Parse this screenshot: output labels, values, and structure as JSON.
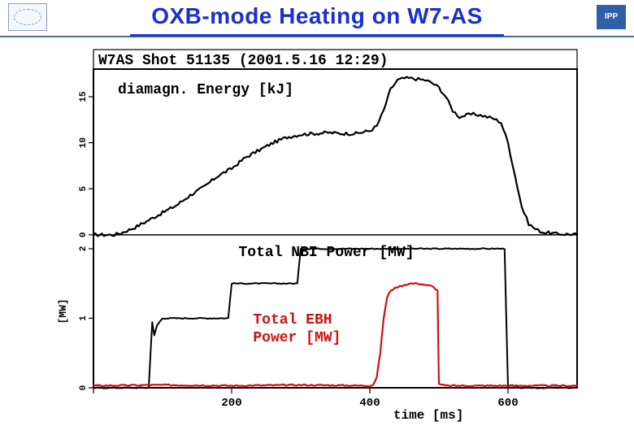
{
  "title": {
    "text": "OXB-mode Heating on W7-AS",
    "color": "#1a2fd0",
    "fontsize": 28
  },
  "logos": {
    "left_name": "stellarator-logo",
    "right_name": "ipp-logo"
  },
  "figure": {
    "shot_label": "W7AS Shot 51135 (2001.5.16 12:29)",
    "shot_label_fontsize": 18,
    "frame_color": "#000000",
    "frame_linewidth": 2,
    "background_color": "#ffffff",
    "x_axis": {
      "label": "time [ms]",
      "label_fontsize": 16,
      "min": 0,
      "max": 700,
      "ticks": [
        0,
        200,
        400,
        600
      ],
      "tick_labels": [
        "",
        "200",
        "400",
        "600"
      ],
      "tick_fontsize": 14,
      "color": "#000000"
    },
    "panels": [
      {
        "name": "diamagn-energy",
        "ylabel_inside": "diamagn. Energy [kJ]",
        "ylabel_color": "#000000",
        "ylabel_fontsize": 18,
        "ymin": 0,
        "ymax": 18,
        "yticks": [
          0,
          5,
          10,
          15
        ],
        "ytick_labels": [
          "0",
          "5",
          "10",
          "15"
        ],
        "series": [
          {
            "name": "energy-trace",
            "color": "#000000",
            "linewidth": 2.2,
            "noise": 0.35,
            "data": [
              [
                0,
                0
              ],
              [
                30,
                0
              ],
              [
                40,
                0.2
              ],
              [
                60,
                0.8
              ],
              [
                80,
                1.6
              ],
              [
                100,
                2.4
              ],
              [
                120,
                3.2
              ],
              [
                140,
                4.3
              ],
              [
                160,
                5.2
              ],
              [
                180,
                6.4
              ],
              [
                200,
                7.2
              ],
              [
                220,
                8.4
              ],
              [
                240,
                9.2
              ],
              [
                260,
                10.0
              ],
              [
                280,
                10.6
              ],
              [
                300,
                10.9
              ],
              [
                320,
                11.0
              ],
              [
                340,
                11.1
              ],
              [
                360,
                11.0
              ],
              [
                380,
                11.0
              ],
              [
                400,
                11.3
              ],
              [
                410,
                11.8
              ],
              [
                420,
                13.5
              ],
              [
                430,
                15.8
              ],
              [
                440,
                16.8
              ],
              [
                450,
                17.0
              ],
              [
                460,
                17.0
              ],
              [
                470,
                16.9
              ],
              [
                480,
                16.8
              ],
              [
                490,
                16.5
              ],
              [
                500,
                16.0
              ],
              [
                510,
                15.0
              ],
              [
                520,
                13.5
              ],
              [
                530,
                12.8
              ],
              [
                540,
                13.0
              ],
              [
                550,
                13.1
              ],
              [
                560,
                13.0
              ],
              [
                570,
                12.8
              ],
              [
                580,
                12.6
              ],
              [
                590,
                12.2
              ],
              [
                600,
                10.0
              ],
              [
                610,
                6.5
              ],
              [
                620,
                3.0
              ],
              [
                630,
                1.2
              ],
              [
                640,
                0.6
              ],
              [
                650,
                0.3
              ],
              [
                670,
                0.1
              ],
              [
                700,
                0.05
              ]
            ]
          }
        ]
      },
      {
        "name": "nbi-power",
        "ylabel_inside": "Total NBI Power [MW]",
        "ylabel_color": "#000000",
        "ylabel_fontsize": 18,
        "axis_label": "[MW]",
        "ymin": 0,
        "ymax": 2.2,
        "yticks": [
          0,
          1,
          2
        ],
        "ytick_labels": [
          "0",
          "1",
          "2"
        ],
        "series": [
          {
            "name": "nbi-trace",
            "color": "#000000",
            "linewidth": 2.0,
            "noise": 0.015,
            "data": [
              [
                0,
                0
              ],
              [
                80,
                0
              ],
              [
                85,
                0.95
              ],
              [
                88,
                0.75
              ],
              [
                92,
                0.9
              ],
              [
                100,
                1.0
              ],
              [
                150,
                1.0
              ],
              [
                195,
                1.0
              ],
              [
                200,
                1.5
              ],
              [
                210,
                1.5
              ],
              [
                260,
                1.5
              ],
              [
                295,
                1.5
              ],
              [
                300,
                2.0
              ],
              [
                310,
                2.0
              ],
              [
                400,
                2.0
              ],
              [
                500,
                2.0
              ],
              [
                580,
                2.0
              ],
              [
                595,
                2.0
              ],
              [
                600,
                0
              ],
              [
                700,
                0
              ]
            ]
          },
          {
            "name": "ebh-trace",
            "color": "#d01010",
            "linewidth": 2.2,
            "noise": 0.02,
            "label": "Total EBH Power [MW]",
            "label_fontsize": 18,
            "data": [
              [
                0,
                0.03
              ],
              [
                100,
                0.04
              ],
              [
                200,
                0.03
              ],
              [
                300,
                0.04
              ],
              [
                400,
                0.03
              ],
              [
                405,
                0.05
              ],
              [
                410,
                0.15
              ],
              [
                415,
                0.5
              ],
              [
                420,
                1.0
              ],
              [
                425,
                1.3
              ],
              [
                430,
                1.4
              ],
              [
                440,
                1.45
              ],
              [
                450,
                1.48
              ],
              [
                460,
                1.5
              ],
              [
                470,
                1.5
              ],
              [
                480,
                1.48
              ],
              [
                490,
                1.46
              ],
              [
                498,
                1.4
              ],
              [
                500,
                0.05
              ],
              [
                510,
                0.03
              ],
              [
                600,
                0.03
              ],
              [
                700,
                0.03
              ]
            ]
          }
        ]
      }
    ]
  }
}
